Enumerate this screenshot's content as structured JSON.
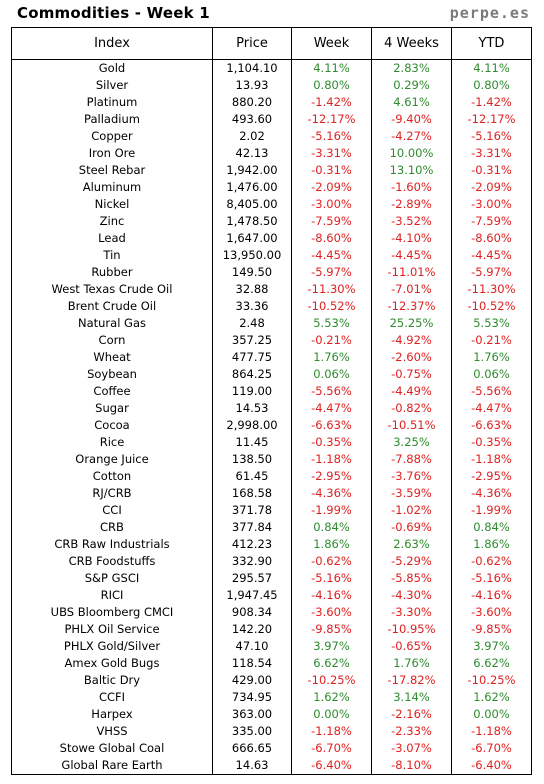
{
  "header": {
    "title": "Commodities - Week 1",
    "brand": "perpe.es"
  },
  "columns": [
    "Index",
    "Price",
    "Week",
    "4 Weeks",
    "YTD"
  ],
  "colors": {
    "positive": "#2e8b2e",
    "negative": "#e02020"
  },
  "rows": [
    {
      "index": "Gold",
      "price": "1,104.10",
      "week": "4.11%",
      "weeks4": "2.83%",
      "ytd": "4.11%"
    },
    {
      "index": "Silver",
      "price": "13.93",
      "week": "0.80%",
      "weeks4": "0.29%",
      "ytd": "0.80%"
    },
    {
      "index": "Platinum",
      "price": "880.20",
      "week": "-1.42%",
      "weeks4": "4.61%",
      "ytd": "-1.42%"
    },
    {
      "index": "Palladium",
      "price": "493.60",
      "week": "-12.17%",
      "weeks4": "-9.40%",
      "ytd": "-12.17%"
    },
    {
      "index": "Copper",
      "price": "2.02",
      "week": "-5.16%",
      "weeks4": "-4.27%",
      "ytd": "-5.16%"
    },
    {
      "index": "Iron Ore",
      "price": "42.13",
      "week": "-3.31%",
      "weeks4": "10.00%",
      "ytd": "-3.31%"
    },
    {
      "index": "Steel Rebar",
      "price": "1,942.00",
      "week": "-0.31%",
      "weeks4": "13.10%",
      "ytd": "-0.31%"
    },
    {
      "index": "Aluminum",
      "price": "1,476.00",
      "week": "-2.09%",
      "weeks4": "-1.60%",
      "ytd": "-2.09%"
    },
    {
      "index": "Nickel",
      "price": "8,405.00",
      "week": "-3.00%",
      "weeks4": "-2.89%",
      "ytd": "-3.00%"
    },
    {
      "index": "Zinc",
      "price": "1,478.50",
      "week": "-7.59%",
      "weeks4": "-3.52%",
      "ytd": "-7.59%"
    },
    {
      "index": "Lead",
      "price": "1,647.00",
      "week": "-8.60%",
      "weeks4": "-4.10%",
      "ytd": "-8.60%"
    },
    {
      "index": "Tin",
      "price": "13,950.00",
      "week": "-4.45%",
      "weeks4": "-4.45%",
      "ytd": "-4.45%"
    },
    {
      "index": "Rubber",
      "price": "149.50",
      "week": "-5.97%",
      "weeks4": "-11.01%",
      "ytd": "-5.97%"
    },
    {
      "index": "West Texas Crude Oil",
      "price": "32.88",
      "week": "-11.30%",
      "weeks4": "-7.01%",
      "ytd": "-11.30%"
    },
    {
      "index": "Brent Crude Oil",
      "price": "33.36",
      "week": "-10.52%",
      "weeks4": "-12.37%",
      "ytd": "-10.52%"
    },
    {
      "index": "Natural Gas",
      "price": "2.48",
      "week": "5.53%",
      "weeks4": "25.25%",
      "ytd": "5.53%"
    },
    {
      "index": "Corn",
      "price": "357.25",
      "week": "-0.21%",
      "weeks4": "-4.92%",
      "ytd": "-0.21%"
    },
    {
      "index": "Wheat",
      "price": "477.75",
      "week": "1.76%",
      "weeks4": "-2.60%",
      "ytd": "1.76%"
    },
    {
      "index": "Soybean",
      "price": "864.25",
      "week": "0.06%",
      "weeks4": "-0.75%",
      "ytd": "0.06%"
    },
    {
      "index": "Coffee",
      "price": "119.00",
      "week": "-5.56%",
      "weeks4": "-4.49%",
      "ytd": "-5.56%"
    },
    {
      "index": "Sugar",
      "price": "14.53",
      "week": "-4.47%",
      "weeks4": "-0.82%",
      "ytd": "-4.47%"
    },
    {
      "index": "Cocoa",
      "price": "2,998.00",
      "week": "-6.63%",
      "weeks4": "-10.51%",
      "ytd": "-6.63%"
    },
    {
      "index": "Rice",
      "price": "11.45",
      "week": "-0.35%",
      "weeks4": "3.25%",
      "ytd": "-0.35%"
    },
    {
      "index": "Orange Juice",
      "price": "138.50",
      "week": "-1.18%",
      "weeks4": "-7.88%",
      "ytd": "-1.18%"
    },
    {
      "index": "Cotton",
      "price": "61.45",
      "week": "-2.95%",
      "weeks4": "-3.76%",
      "ytd": "-2.95%"
    },
    {
      "index": "RJ/CRB",
      "price": "168.58",
      "week": "-4.36%",
      "weeks4": "-3.59%",
      "ytd": "-4.36%"
    },
    {
      "index": "CCI",
      "price": "371.78",
      "week": "-1.99%",
      "weeks4": "-1.02%",
      "ytd": "-1.99%"
    },
    {
      "index": "CRB",
      "price": "377.84",
      "week": "0.84%",
      "weeks4": "-0.69%",
      "ytd": "0.84%"
    },
    {
      "index": "CRB Raw Industrials",
      "price": "412.23",
      "week": "1.86%",
      "weeks4": "2.63%",
      "ytd": "1.86%"
    },
    {
      "index": "CRB Foodstuffs",
      "price": "332.90",
      "week": "-0.62%",
      "weeks4": "-5.29%",
      "ytd": "-0.62%"
    },
    {
      "index": "S&P GSCI",
      "price": "295.57",
      "week": "-5.16%",
      "weeks4": "-5.85%",
      "ytd": "-5.16%"
    },
    {
      "index": "RICI",
      "price": "1,947.45",
      "week": "-4.16%",
      "weeks4": "-4.30%",
      "ytd": "-4.16%"
    },
    {
      "index": "UBS Bloomberg CMCI",
      "price": "908.34",
      "week": "-3.60%",
      "weeks4": "-3.30%",
      "ytd": "-3.60%"
    },
    {
      "index": "PHLX Oil Service",
      "price": "142.20",
      "week": "-9.85%",
      "weeks4": "-10.95%",
      "ytd": "-9.85%"
    },
    {
      "index": "PHLX Gold/Silver",
      "price": "47.10",
      "week": "3.97%",
      "weeks4": "-0.65%",
      "ytd": "3.97%"
    },
    {
      "index": "Amex Gold Bugs",
      "price": "118.54",
      "week": "6.62%",
      "weeks4": "1.76%",
      "ytd": "6.62%"
    },
    {
      "index": "Baltic Dry",
      "price": "429.00",
      "week": "-10.25%",
      "weeks4": "-17.82%",
      "ytd": "-10.25%"
    },
    {
      "index": "CCFI",
      "price": "734.95",
      "week": "1.62%",
      "weeks4": "3.14%",
      "ytd": "1.62%"
    },
    {
      "index": "Harpex",
      "price": "363.00",
      "week": "0.00%",
      "weeks4": "-2.16%",
      "ytd": "0.00%"
    },
    {
      "index": "VHSS",
      "price": "335.00",
      "week": "-1.18%",
      "weeks4": "-2.33%",
      "ytd": "-1.18%"
    },
    {
      "index": "Stowe Global Coal",
      "price": "666.65",
      "week": "-6.70%",
      "weeks4": "-3.07%",
      "ytd": "-6.70%"
    },
    {
      "index": "Global Rare Earth",
      "price": "14.63",
      "week": "-6.40%",
      "weeks4": "-8.10%",
      "ytd": "-6.40%"
    }
  ]
}
